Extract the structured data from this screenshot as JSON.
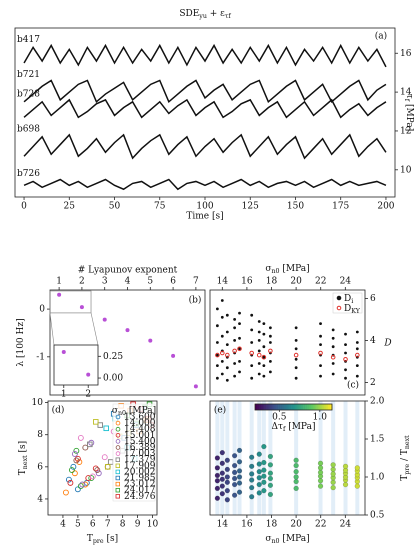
{
  "chart_data": [
    {
      "type": "line",
      "panel_label": "(a)",
      "title": [
        "SDE",
        "yu",
        " + ε",
        "τf"
      ],
      "xlabel": "Time [s]",
      "ylabel": [
        "τ",
        "f",
        " [MPa]"
      ],
      "yaxis_position": "right",
      "xlim": [
        -5,
        205
      ],
      "xticks": [
        0,
        25,
        50,
        75,
        100,
        125,
        150,
        175,
        200
      ],
      "ylim": [
        8.6,
        17.3
      ],
      "yticks": [
        10,
        12,
        14,
        16
      ],
      "x": [
        0,
        5,
        10,
        15,
        20,
        25,
        30,
        35,
        40,
        45,
        50,
        55,
        60,
        65,
        70,
        75,
        80,
        85,
        90,
        95,
        100,
        105,
        110,
        115,
        120,
        125,
        130,
        135,
        140,
        145,
        150,
        155,
        160,
        165,
        170,
        175,
        180,
        185,
        190,
        195,
        200
      ],
      "series": [
        {
          "name": "b417",
          "color": "#111111",
          "values": [
            15.5,
            16.3,
            15.6,
            16.4,
            15.5,
            16.2,
            15.4,
            16.3,
            15.6,
            16.4,
            15.5,
            16.3,
            15.5,
            16.2,
            15.6,
            16.4,
            15.5,
            16.3,
            15.4,
            16.3,
            15.6,
            16.4,
            15.5,
            16.2,
            15.5,
            16.3,
            15.6,
            16.4,
            15.5,
            16.3,
            15.4,
            16.2,
            15.6,
            16.3,
            15.5,
            16.4,
            15.5,
            16.3,
            15.6,
            16.2,
            15.3
          ]
        },
        {
          "name": "b721",
          "color": "#111111",
          "values": [
            13.5,
            13.9,
            14.3,
            14.6,
            13.6,
            14.0,
            14.4,
            14.6,
            13.5,
            13.9,
            14.2,
            14.5,
            13.6,
            14.0,
            14.4,
            14.6,
            13.5,
            13.9,
            14.3,
            14.6,
            13.7,
            14.1,
            14.4,
            13.6,
            14.0,
            14.4,
            14.6,
            13.5,
            13.9,
            14.3,
            14.6,
            13.6,
            14.0,
            14.4,
            13.5,
            13.9,
            14.3,
            14.6,
            13.6,
            14.1,
            14.4
          ]
        },
        {
          "name": "b728",
          "color": "#111111",
          "values": [
            12.7,
            13.1,
            13.5,
            12.8,
            13.2,
            13.6,
            12.7,
            13.0,
            13.4,
            13.6,
            12.8,
            13.2,
            13.5,
            12.7,
            13.1,
            13.5,
            12.9,
            13.3,
            13.6,
            12.8,
            13.2,
            13.5,
            12.7,
            13.0,
            13.4,
            13.6,
            12.8,
            13.2,
            13.5,
            12.7,
            13.1,
            13.5,
            12.8,
            13.2,
            13.6,
            12.7,
            13.1,
            13.4,
            12.8,
            13.2,
            13.5
          ]
        },
        {
          "name": "b698",
          "color": "#111111",
          "values": [
            10.7,
            11.2,
            11.7,
            10.8,
            11.3,
            11.8,
            10.7,
            11.1,
            11.6,
            10.9,
            11.4,
            11.8,
            10.6,
            11.1,
            11.5,
            11.8,
            10.8,
            11.3,
            11.7,
            10.7,
            11.2,
            11.6,
            10.9,
            11.4,
            11.8,
            10.7,
            11.2,
            11.7,
            10.8,
            11.3,
            11.7,
            10.6,
            11.1,
            11.6,
            10.8,
            11.3,
            11.8,
            10.7,
            11.2,
            11.6,
            10.9
          ]
        },
        {
          "name": "b726",
          "color": "#111111",
          "values": [
            9.2,
            9.4,
            9.1,
            9.3,
            9.5,
            9.2,
            9.4,
            9.1,
            9.3,
            9.5,
            9.2,
            9.0,
            9.3,
            9.4,
            9.1,
            9.3,
            9.5,
            9.0,
            9.3,
            9.4,
            9.2,
            9.4,
            9.1,
            9.3,
            9.5,
            9.2,
            9.4,
            9.1,
            9.3,
            9.4,
            9.2,
            9.4,
            9.1,
            9.3,
            9.5,
            9.2,
            9.4,
            9.2,
            9.3,
            9.4,
            9.2
          ]
        }
      ]
    },
    {
      "type": "scatter_inset",
      "panel_label": "(b)",
      "xlabel": "# Lyapunov exponent",
      "xaxis_position": "top",
      "ylabel": [
        "λ [100 Hz]"
      ],
      "color": "#b84fd6",
      "xlim": [
        0.6,
        7.4
      ],
      "xticks": [
        1,
        2,
        3,
        4,
        5,
        6,
        7
      ],
      "ylim": [
        -1.8,
        0.4
      ],
      "yticks": [
        0,
        -1
      ],
      "x": [
        1,
        2,
        3,
        4,
        5,
        6,
        7
      ],
      "values": [
        0.3,
        0.04,
        -0.22,
        -0.44,
        -0.66,
        -0.98,
        -1.62
      ],
      "inset": {
        "xlim": [
          0.6,
          2.4
        ],
        "xticks": [
          1,
          2
        ],
        "ylim": [
          -0.08,
          0.38
        ],
        "yticks": [
          {
            "value": 0.25,
            "label": "0.25"
          },
          {
            "value": 0,
            "label": "0.00"
          }
        ]
      }
    },
    {
      "type": "dot_strip",
      "panel_label": "(c)",
      "xlabel": [
        "σ",
        "n0",
        " [MPa]"
      ],
      "xaxis_position": "top",
      "ylabel": [
        "D"
      ],
      "yaxis_position": "right",
      "xlim": [
        13,
        25.6
      ],
      "xticks": [
        14,
        16,
        18,
        20,
        22,
        24
      ],
      "ylim": [
        1.4,
        6.4
      ],
      "yticks": [
        2,
        4,
        6
      ],
      "legend": [
        [
          "D",
          "i"
        ],
        [
          "D",
          "KY"
        ]
      ],
      "colors": [
        "#111111",
        "#e0312b"
      ],
      "x": [
        13.6,
        14.0,
        14.408,
        15.001,
        15.4,
        16.389,
        17.003,
        17.379,
        17.909,
        20.002,
        21.985,
        23.012,
        24.017,
        24.976
      ],
      "D_i": [
        [
          2.2,
          2.8,
          3.3,
          3.9,
          4.7,
          5.5
        ],
        [
          2.4,
          3.0,
          3.5,
          4.2,
          5.1,
          5.9
        ],
        [
          2.1,
          2.7,
          3.2,
          3.8,
          4.4,
          5.2
        ],
        [
          2.3,
          2.9,
          3.4,
          4.0,
          4.6,
          5.0
        ],
        [
          2.5,
          3.0,
          3.6,
          4.1,
          4.8,
          5.3
        ],
        [
          2.2,
          2.8,
          3.3,
          3.9,
          4.5,
          5.2
        ],
        [
          2.4,
          2.9,
          3.5,
          4.0,
          4.4,
          4.9
        ],
        [
          2.3,
          2.8,
          3.2,
          3.7,
          4.3,
          4.8
        ],
        [
          2.5,
          3.0,
          3.4,
          3.9,
          4.2,
          4.6
        ],
        [
          2.2,
          2.7,
          3.1,
          3.6,
          4.0,
          4.6
        ],
        [
          2.3,
          2.8,
          3.3,
          3.8,
          4.2,
          4.8
        ],
        [
          2.4,
          2.9,
          3.3,
          3.7,
          4.1,
          4.5
        ],
        [
          2.2,
          2.6,
          3.0,
          3.4,
          3.8,
          4.3
        ],
        [
          2.3,
          2.8,
          3.2,
          3.6,
          3.9,
          4.4
        ]
      ],
      "D_KY": [
        3.3,
        3.4,
        3.3,
        3.5,
        3.6,
        3.4,
        3.3,
        3.2,
        3.5,
        3.3,
        3.4,
        3.2,
        3.1,
        3.3
      ]
    },
    {
      "type": "scatter",
      "panel_label": "(d)",
      "xlabel": [
        "T",
        "pre",
        " [s]"
      ],
      "ylabel": [
        "T",
        "next",
        " [s]"
      ],
      "legend_title": [
        "σ",
        "n0",
        " [MPa]"
      ],
      "xlim": [
        3,
        10.3
      ],
      "xticks": [
        4,
        5,
        6,
        7,
        8,
        9,
        10
      ],
      "ylim": [
        3,
        10.1
      ],
      "yticks": [
        4,
        6,
        8,
        10
      ],
      "series": [
        {
          "name": "13.600",
          "color": "#1f77b4",
          "marker": "o",
          "x": [
            4.4,
            5.0,
            4.7,
            5.6
          ],
          "y": [
            5.2,
            4.6,
            6.0,
            5.0
          ]
        },
        {
          "name": "14.000",
          "color": "#ff7f0e",
          "marker": "o",
          "x": [
            4.2,
            4.8,
            5.5,
            5.1
          ],
          "y": [
            4.4,
            5.6,
            4.9,
            6.3
          ]
        },
        {
          "name": "14.408",
          "color": "#2ca02c",
          "marker": "o",
          "x": [
            4.6,
            5.2,
            5.9,
            4.9
          ],
          "y": [
            5.8,
            4.8,
            5.3,
            7.0
          ]
        },
        {
          "name": "15.001",
          "color": "#d62728",
          "marker": "o",
          "x": [
            5.0,
            5.7,
            4.5,
            6.2
          ],
          "y": [
            6.5,
            5.3,
            5.0,
            5.9
          ]
        },
        {
          "name": "15.400",
          "color": "#9467bd",
          "marker": "o",
          "x": [
            5.3,
            4.8,
            6.4,
            5.9
          ],
          "y": [
            4.9,
            6.8,
            5.6,
            7.5
          ]
        },
        {
          "name": "16.389",
          "color": "#8c564b",
          "marker": "o",
          "x": [
            5.5,
            6.3,
            4.9,
            7.0
          ],
          "y": [
            7.2,
            5.8,
            6.4,
            6.0
          ]
        },
        {
          "name": "17.003",
          "color": "#e377c2",
          "marker": "o",
          "x": [
            6.0,
            5.2,
            6.8,
            7.4
          ],
          "y": [
            5.4,
            7.8,
            6.6,
            8.2
          ]
        },
        {
          "name": "17.379",
          "color": "#7f7f7f",
          "marker": "s",
          "x": [
            6.5,
            7.2,
            5.8,
            8.0
          ],
          "y": [
            8.6,
            6.3,
            7.4,
            7.0
          ]
        },
        {
          "name": "17.909",
          "color": "#bcbd22",
          "marker": "s",
          "x": [
            7.0,
            6.2,
            7.8,
            8.4
          ],
          "y": [
            6.0,
            8.8,
            7.9,
            8.1
          ]
        },
        {
          "name": "20.002",
          "color": "#17becf",
          "marker": "s",
          "x": [
            7.5,
            8.3,
            6.9,
            8.8
          ],
          "y": [
            9.0,
            7.2,
            8.4,
            6.5
          ]
        },
        {
          "name": "21.985",
          "color": "#1f77b4",
          "marker": "s",
          "x": [
            8.1,
            7.4,
            8.9,
            9.3
          ],
          "y": [
            7.8,
            9.3,
            8.6,
            9.6
          ]
        },
        {
          "name": "23.012",
          "color": "#ff7f0e",
          "marker": "s",
          "x": [
            8.5,
            9.1,
            7.9,
            9.6
          ],
          "y": [
            9.5,
            8.2,
            9.8,
            8.9
          ]
        },
        {
          "name": "24.017",
          "color": "#2ca02c",
          "marker": "s",
          "x": [
            8.9,
            9.5,
            8.3,
            9.8
          ],
          "y": [
            8.7,
            9.7,
            9.2,
            9.9
          ]
        },
        {
          "name": "24.976",
          "color": "#d62728",
          "marker": "s",
          "x": [
            9.2,
            9.7,
            8.7,
            9.9
          ],
          "y": [
            9.6,
            9.0,
            9.9,
            8.6
          ]
        }
      ]
    },
    {
      "type": "colored_strip",
      "panel_label": "(e)",
      "xlabel": [
        "σ",
        "n0",
        " [MPa]"
      ],
      "ylabel": [
        "T",
        "pre",
        " / T",
        "next"
      ],
      "yaxis_position": "right",
      "xlim": [
        13,
        25.6
      ],
      "xticks": [
        14,
        16,
        18,
        20,
        22,
        24
      ],
      "ylim": [
        0.5,
        2.0
      ],
      "yticks": [
        0.5,
        {
          "value": 1,
          "label": "1.0"
        },
        1.5,
        {
          "value": 2,
          "label": "2.0"
        }
      ],
      "colorbar_label": [
        "Δτ",
        "f",
        " [MPa]"
      ],
      "clim": [
        0.2,
        1.15
      ],
      "cticks": [
        0.5,
        {
          "value": 1,
          "label": "1.0"
        }
      ],
      "x": [
        13.6,
        14.0,
        14.408,
        15.001,
        15.4,
        16.389,
        17.003,
        17.379,
        17.909,
        20.002,
        21.985,
        23.012,
        24.017,
        24.976
      ],
      "values": [
        [
          0.72,
          0.85,
          0.95,
          1.02,
          1.12,
          1.25
        ],
        [
          0.78,
          0.88,
          0.97,
          1.05,
          1.18,
          1.32
        ],
        [
          0.7,
          0.82,
          0.93,
          1.0,
          1.1,
          1.22
        ],
        [
          0.76,
          0.9,
          0.98,
          1.06,
          1.15,
          1.28
        ],
        [
          0.8,
          0.92,
          1.0,
          1.08,
          1.2,
          1.35
        ],
        [
          0.74,
          0.86,
          0.96,
          1.04,
          1.14,
          1.26
        ],
        [
          0.79,
          0.9,
          0.99,
          1.07,
          1.17,
          1.3
        ],
        [
          0.82,
          0.93,
          1.01,
          1.09,
          1.19,
          1.4
        ],
        [
          0.77,
          0.89,
          0.98,
          1.05,
          1.16,
          1.27
        ],
        [
          0.85,
          0.94,
          1.0,
          1.07,
          1.15,
          1.22
        ],
        [
          0.88,
          0.95,
          1.01,
          1.06,
          1.12,
          1.18
        ],
        [
          0.86,
          0.93,
          0.99,
          1.04,
          1.1,
          1.16
        ],
        [
          0.9,
          0.96,
          1.0,
          1.05,
          1.09,
          1.14
        ],
        [
          0.88,
          0.94,
          0.99,
          1.03,
          1.08,
          1.12
        ]
      ],
      "color_values": [
        0.3,
        0.35,
        0.4,
        0.45,
        0.5,
        0.6,
        0.65,
        0.7,
        0.75,
        0.85,
        0.95,
        1.0,
        1.05,
        1.08
      ]
    }
  ]
}
